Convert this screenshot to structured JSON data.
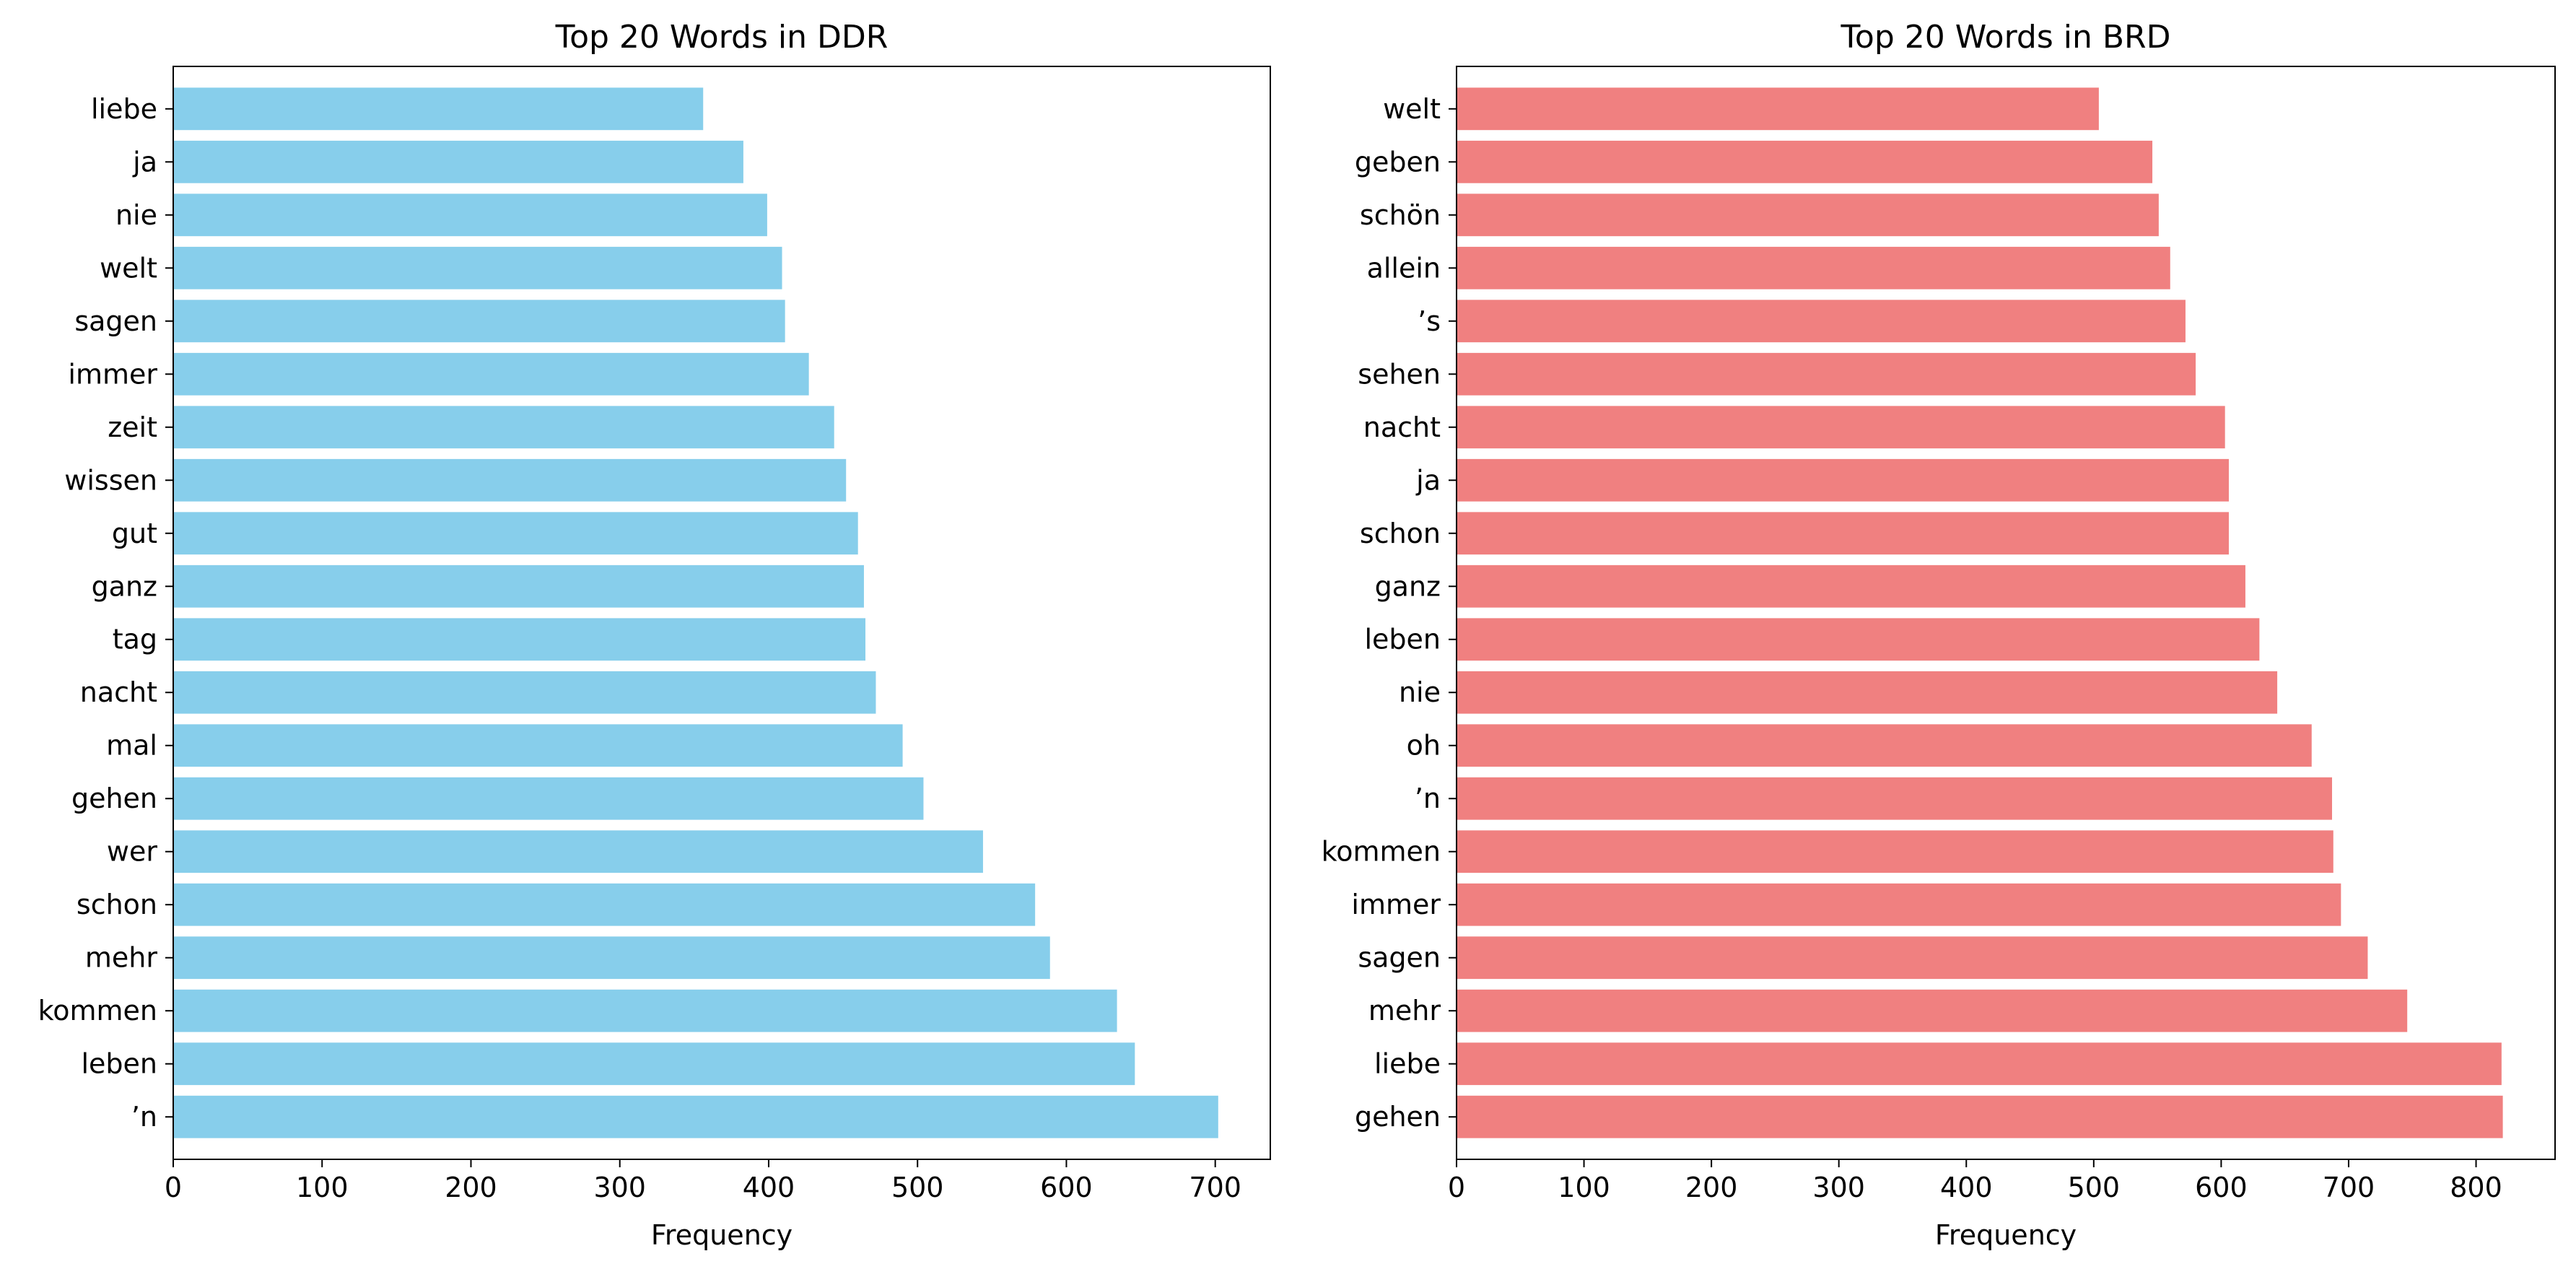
{
  "chart_data": [
    {
      "type": "bar",
      "orientation": "horizontal",
      "title": "Top 20 Words in DDR",
      "xlabel": "Frequency",
      "ylabel": "",
      "color": "#87ceeb",
      "xlim": [
        0,
        737
      ],
      "xticks": [
        0,
        100,
        200,
        300,
        400,
        500,
        600,
        700
      ],
      "categories": [
        "liebe",
        "ja",
        "nie",
        "welt",
        "sagen",
        "immer",
        "zeit",
        "wissen",
        "gut",
        "ganz",
        "tag",
        "nacht",
        "mal",
        "gehen",
        "wer",
        "schon",
        "mehr",
        "kommen",
        "leben",
        "’n"
      ],
      "values": [
        356,
        383,
        399,
        409,
        411,
        427,
        444,
        452,
        460,
        464,
        465,
        472,
        490,
        504,
        544,
        579,
        589,
        634,
        646,
        702
      ],
      "grid": false,
      "legend": "none"
    },
    {
      "type": "bar",
      "orientation": "horizontal",
      "title": "Top 20 Words in BRD",
      "xlabel": "Frequency",
      "ylabel": "",
      "color": "#f08080",
      "xlim": [
        0,
        862
      ],
      "xticks": [
        0,
        100,
        200,
        300,
        400,
        500,
        600,
        700,
        800
      ],
      "categories": [
        "welt",
        "geben",
        "schön",
        "allein",
        "’s",
        "sehen",
        "nacht",
        "ja",
        "schon",
        "ganz",
        "leben",
        "nie",
        "oh",
        "’n",
        "kommen",
        "immer",
        "sagen",
        "mehr",
        "liebe",
        "gehen"
      ],
      "values": [
        504,
        546,
        551,
        560,
        572,
        580,
        603,
        606,
        606,
        619,
        630,
        644,
        671,
        687,
        688,
        694,
        715,
        746,
        820,
        821
      ],
      "grid": false,
      "legend": "none"
    }
  ]
}
